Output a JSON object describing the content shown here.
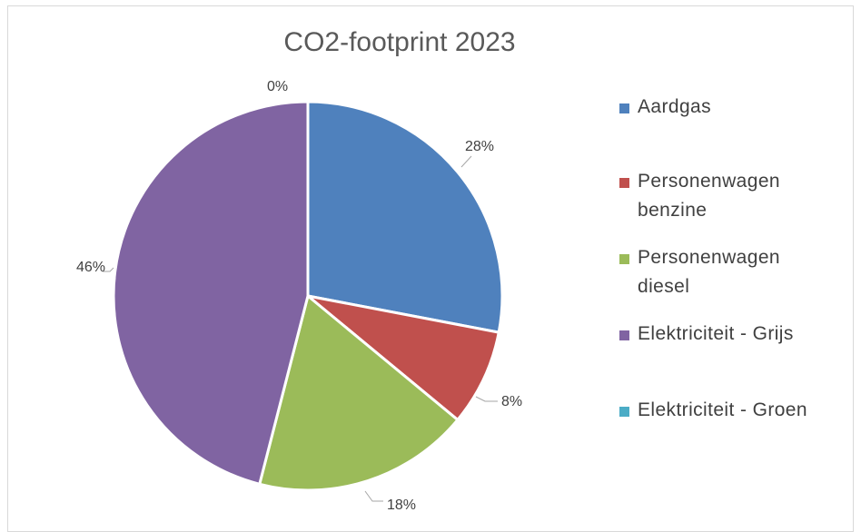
{
  "chart_data": {
    "type": "pie",
    "title": "CO2-footprint 2023",
    "legend_position": "right",
    "slices": [
      {
        "label": "Aardgas",
        "value": 28,
        "display": "28%",
        "color": "#4f81bd"
      },
      {
        "label": "Personenwagen benzine",
        "value": 8,
        "display": "8%",
        "color": "#c0504d"
      },
      {
        "label": "Personenwagen diesel",
        "value": 18,
        "display": "18%",
        "color": "#9bbb59"
      },
      {
        "label": "Elektriciteit - Grijs",
        "value": 46,
        "display": "46%",
        "color": "#8064a2"
      },
      {
        "label": "Elektriciteit - Groen",
        "value": 0,
        "display": "0%",
        "color": "#4bacc6"
      }
    ]
  }
}
